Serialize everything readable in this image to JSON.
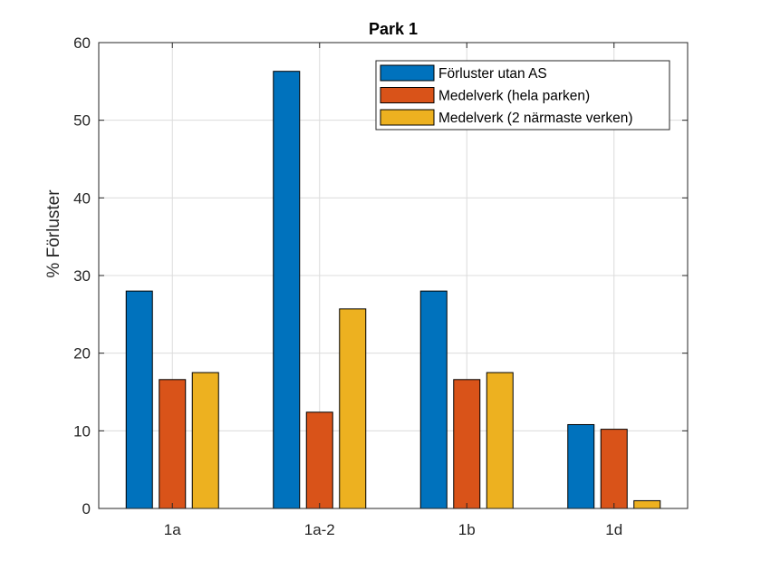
{
  "chart_data": {
    "type": "bar",
    "title": "Park 1",
    "xlabel": "",
    "ylabel": "% Förluster",
    "categories": [
      "1a",
      "1a-2",
      "1b",
      "1d"
    ],
    "ylim": [
      0,
      60
    ],
    "yticks": [
      0,
      10,
      20,
      30,
      40,
      50,
      60
    ],
    "grid": true,
    "legend_position": "top-right",
    "series": [
      {
        "name": "Förluster utan AS",
        "color": "#0072BD",
        "values": [
          28.0,
          56.3,
          28.0,
          10.8
        ]
      },
      {
        "name": "Medelverk (hela parken)",
        "color": "#D95319",
        "values": [
          16.6,
          12.4,
          16.6,
          10.2
        ]
      },
      {
        "name": "Medelverk (2 närmaste verken)",
        "color": "#EDB120",
        "values": [
          17.5,
          25.7,
          17.5,
          1.0
        ]
      }
    ]
  }
}
